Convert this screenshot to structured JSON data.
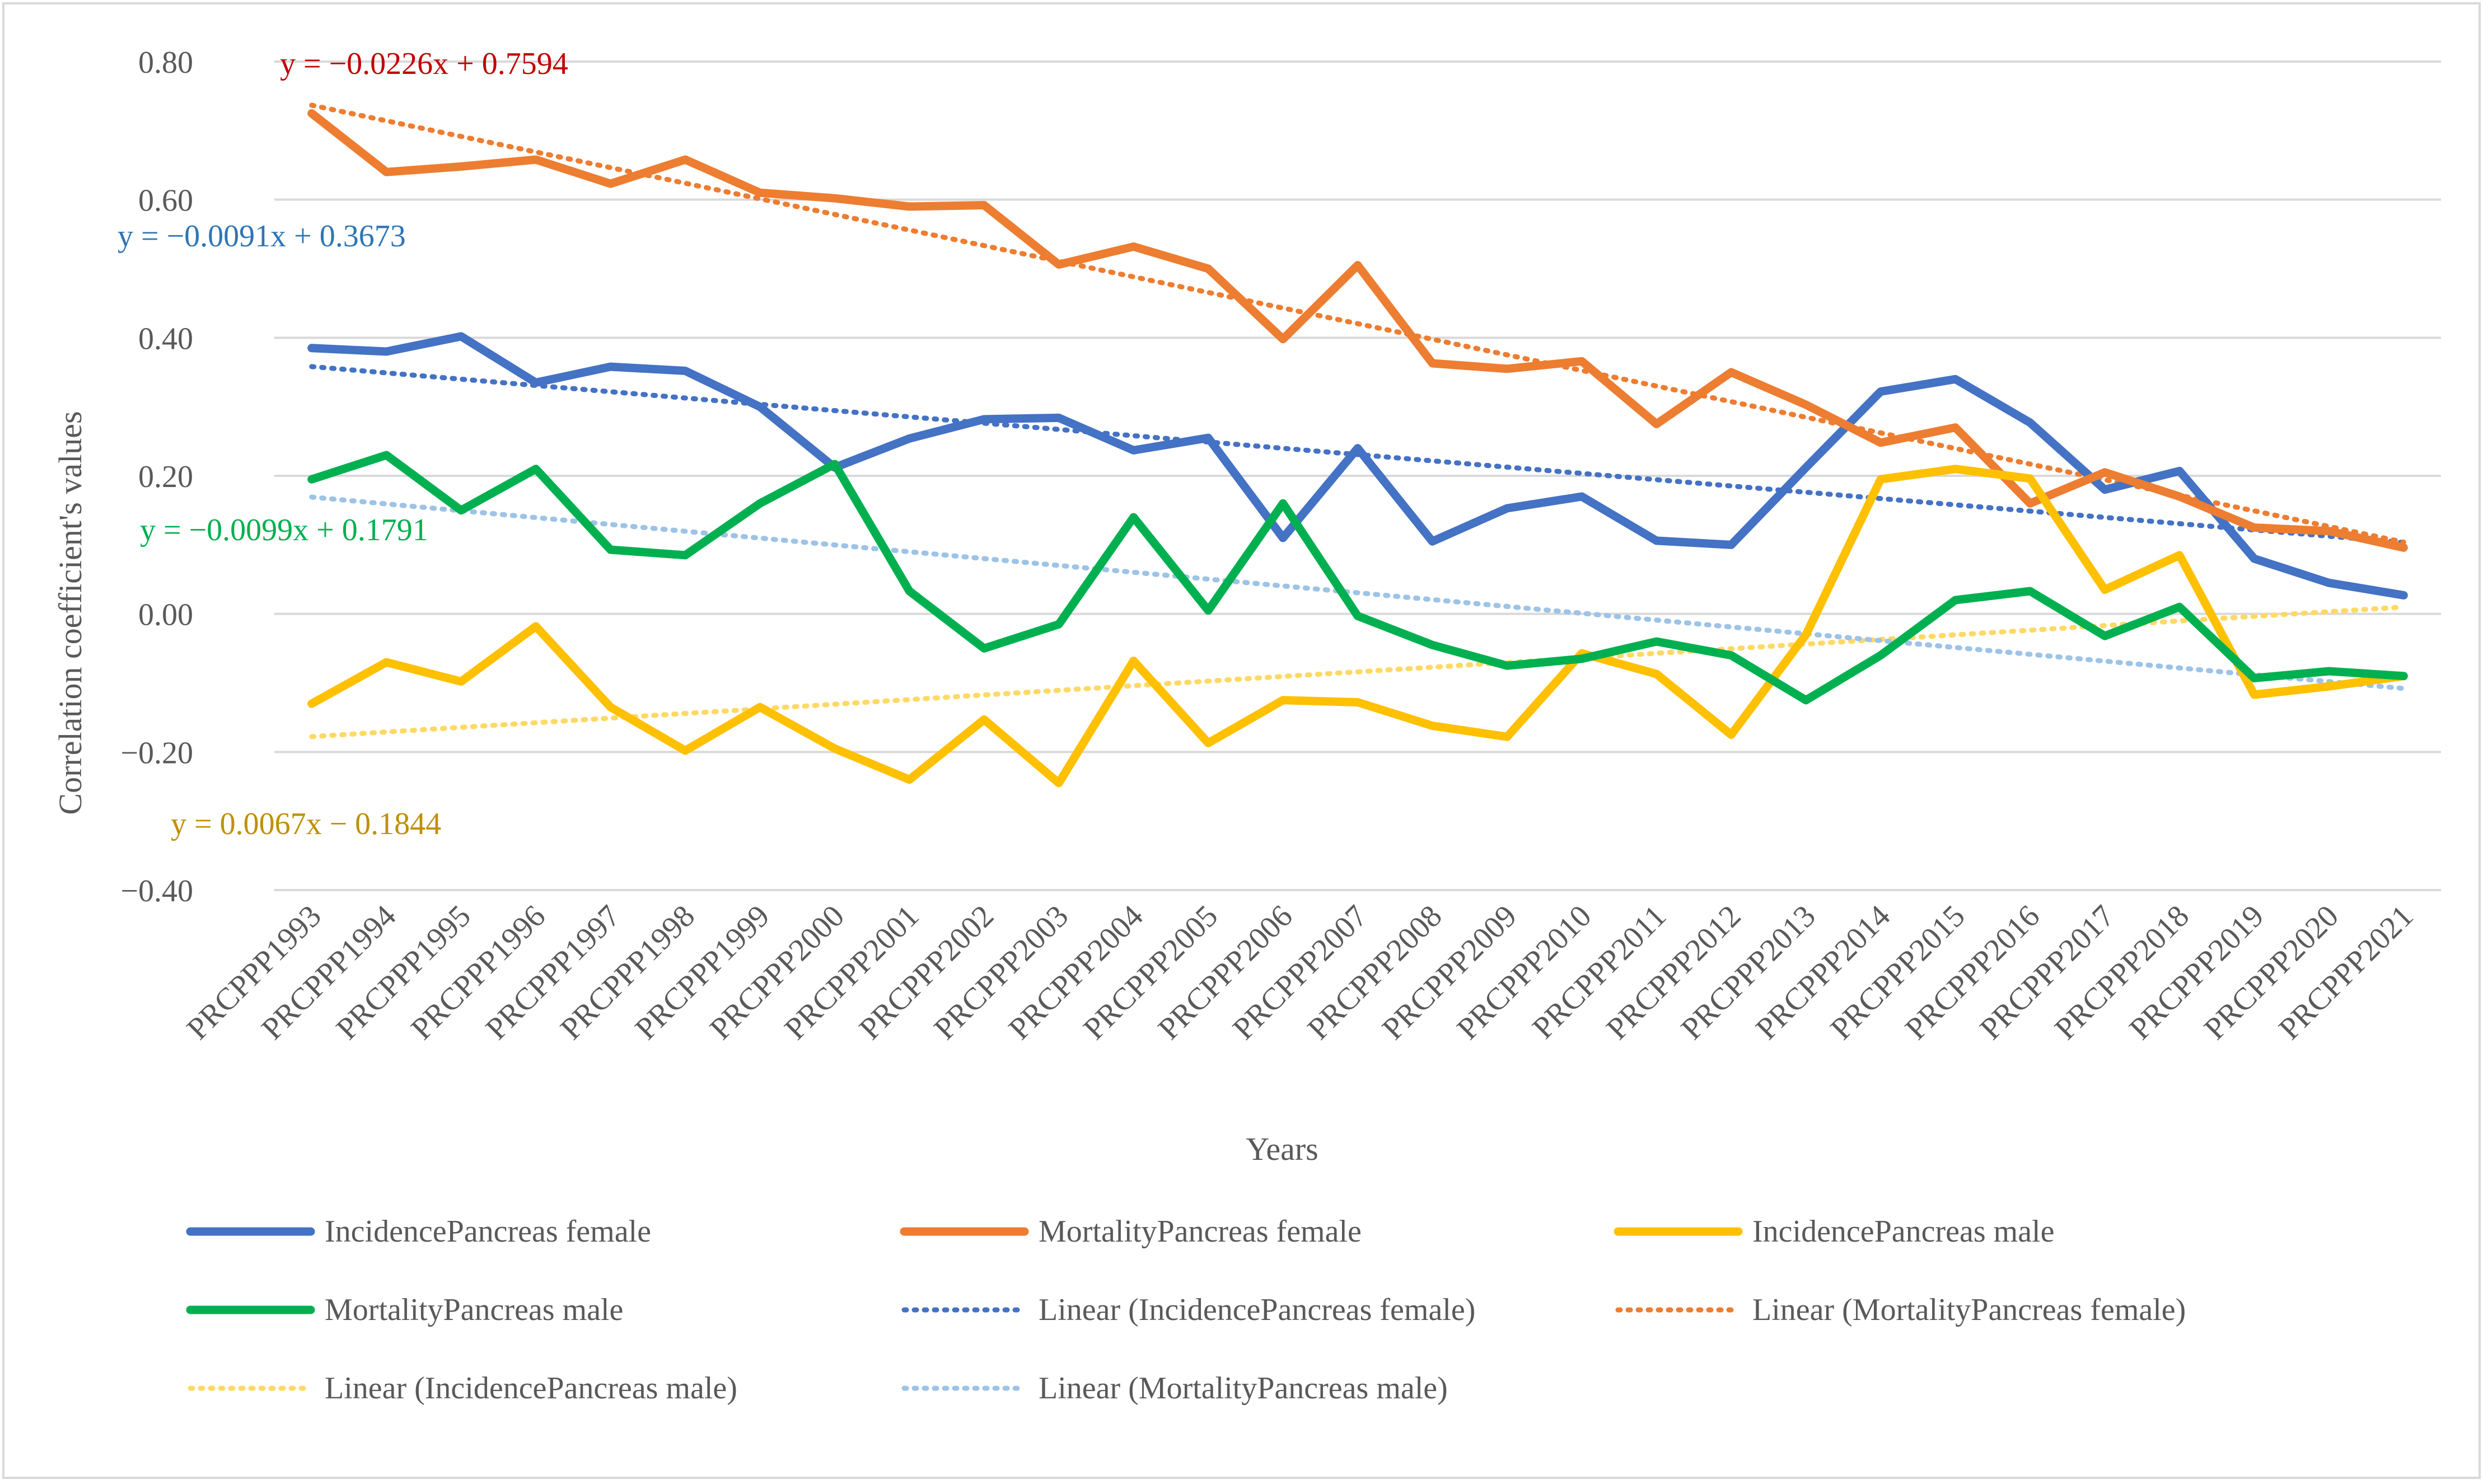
{
  "chart_data": {
    "type": "line",
    "xlabel": "Years",
    "ylabel": "Correlation coefficient's values",
    "ylim": [
      -0.4,
      0.8
    ],
    "yticks": [
      -0.4,
      -0.2,
      0.0,
      0.2,
      0.4,
      0.6,
      0.8
    ],
    "ytick_labels": [
      "−0.40",
      "−0.20",
      "0.00",
      "0.20",
      "0.40",
      "0.60",
      "0.80"
    ],
    "grid": true,
    "legend_position": "bottom",
    "categories": [
      "PRCPPP1993",
      "PRCPPP1994",
      "PRCPPP1995",
      "PRCPPP1996",
      "PRCPPP1997",
      "PRCPPP1998",
      "PRCPPP1999",
      "PRCPPP2000",
      "PRCPPP2001",
      "PRCPPP2002",
      "PRCPPP2003",
      "PRCPPP2004",
      "PRCPPP2005",
      "PRCPPP2006",
      "PRCPPP2007",
      "PRCPPP2008",
      "PRCPPP2009",
      "PRCPPP2010",
      "PRCPPP2011",
      "PRCPPP2012",
      "PRCPPP2013",
      "PRCPPP2014",
      "PRCPPP2015",
      "PRCPPP2016",
      "PRCPPP2017",
      "PRCPPP2018",
      "PRCPPP2019",
      "PRCPPP2020",
      "PRCPPP2021"
    ],
    "series": [
      {
        "name": "IncidencePancreas female",
        "color": "#4472C4",
        "values": [
          0.385,
          0.38,
          0.402,
          0.335,
          0.358,
          0.352,
          0.3,
          0.212,
          0.254,
          0.282,
          0.284,
          0.237,
          0.255,
          0.11,
          0.24,
          0.105,
          0.153,
          0.17,
          0.106,
          0.1,
          0.212,
          0.322,
          0.34,
          0.277,
          0.18,
          0.207,
          0.08,
          0.045,
          0.027
        ]
      },
      {
        "name": "MortalityPancreas female",
        "color": "#ED7D31",
        "values": [
          0.725,
          0.64,
          0.648,
          0.658,
          0.623,
          0.658,
          0.61,
          0.602,
          0.59,
          0.592,
          0.506,
          0.532,
          0.5,
          0.398,
          0.505,
          0.363,
          0.355,
          0.366,
          0.275,
          0.35,
          0.303,
          0.248,
          0.27,
          0.16,
          0.205,
          0.17,
          0.125,
          0.12,
          0.096
        ]
      },
      {
        "name": "IncidencePancreas male",
        "color": "#FFC000",
        "values": [
          -0.13,
          -0.07,
          -0.098,
          -0.018,
          -0.135,
          -0.198,
          -0.135,
          -0.195,
          -0.24,
          -0.153,
          -0.245,
          -0.068,
          -0.187,
          -0.125,
          -0.128,
          -0.162,
          -0.178,
          -0.057,
          -0.087,
          -0.175,
          -0.03,
          0.195,
          0.21,
          0.196,
          0.035,
          0.085,
          -0.117,
          -0.105,
          -0.09
        ]
      },
      {
        "name": "MortalityPancreas male",
        "color": "#00B050",
        "values": [
          0.195,
          0.23,
          0.15,
          0.21,
          0.093,
          0.085,
          0.16,
          0.217,
          0.033,
          -0.05,
          -0.015,
          0.14,
          0.005,
          0.16,
          -0.003,
          -0.045,
          -0.075,
          -0.065,
          -0.04,
          -0.06,
          -0.125,
          -0.06,
          0.02,
          0.033,
          -0.032,
          0.01,
          -0.093,
          -0.083,
          -0.09
        ]
      }
    ],
    "trendlines": [
      {
        "name": "Linear (IncidencePancreas female)",
        "color": "#4472C4",
        "slope": -0.0091,
        "intercept": 0.3673,
        "equation": "y = −0.0091x + 0.3673",
        "label_color": "#2E75B6"
      },
      {
        "name": "Linear (MortalityPancreas female)",
        "color": "#ED7D31",
        "slope": -0.0226,
        "intercept": 0.7594,
        "equation": "y = −0.0226x + 0.7594",
        "label_color": "#C00000"
      },
      {
        "name": "Linear (IncidencePancreas male)",
        "color": "#FFD966",
        "slope": 0.0067,
        "intercept": -0.1844,
        "equation": "y = 0.0067x − 0.1844",
        "label_color": "#BF9000"
      },
      {
        "name": "Linear (MortalityPancreas male)",
        "color": "#9DC3E6",
        "slope": -0.0099,
        "intercept": 0.1791,
        "equation": "y = −0.0099x + 0.1791",
        "label_color": "#00B050"
      }
    ]
  }
}
